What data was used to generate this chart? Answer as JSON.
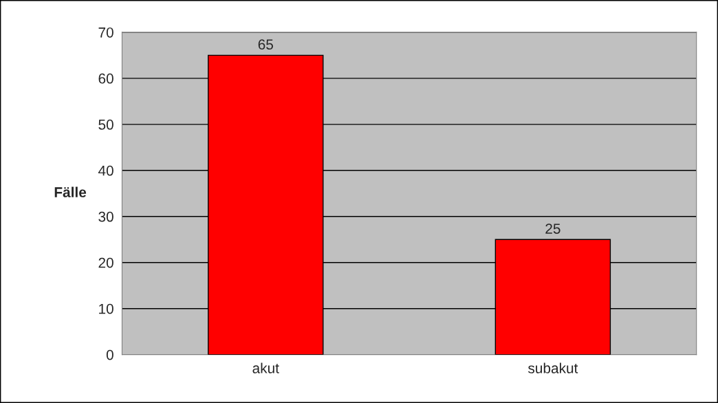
{
  "chart_data": {
    "type": "bar",
    "ylabel": "Fälle",
    "categories": [
      "akut",
      "subakut"
    ],
    "values": [
      65,
      25
    ],
    "color": "#ff0000",
    "ylim": [
      0,
      70
    ],
    "yticks": [
      0,
      10,
      20,
      30,
      40,
      50,
      60,
      70
    ],
    "grid": "y",
    "data_labels": true
  }
}
